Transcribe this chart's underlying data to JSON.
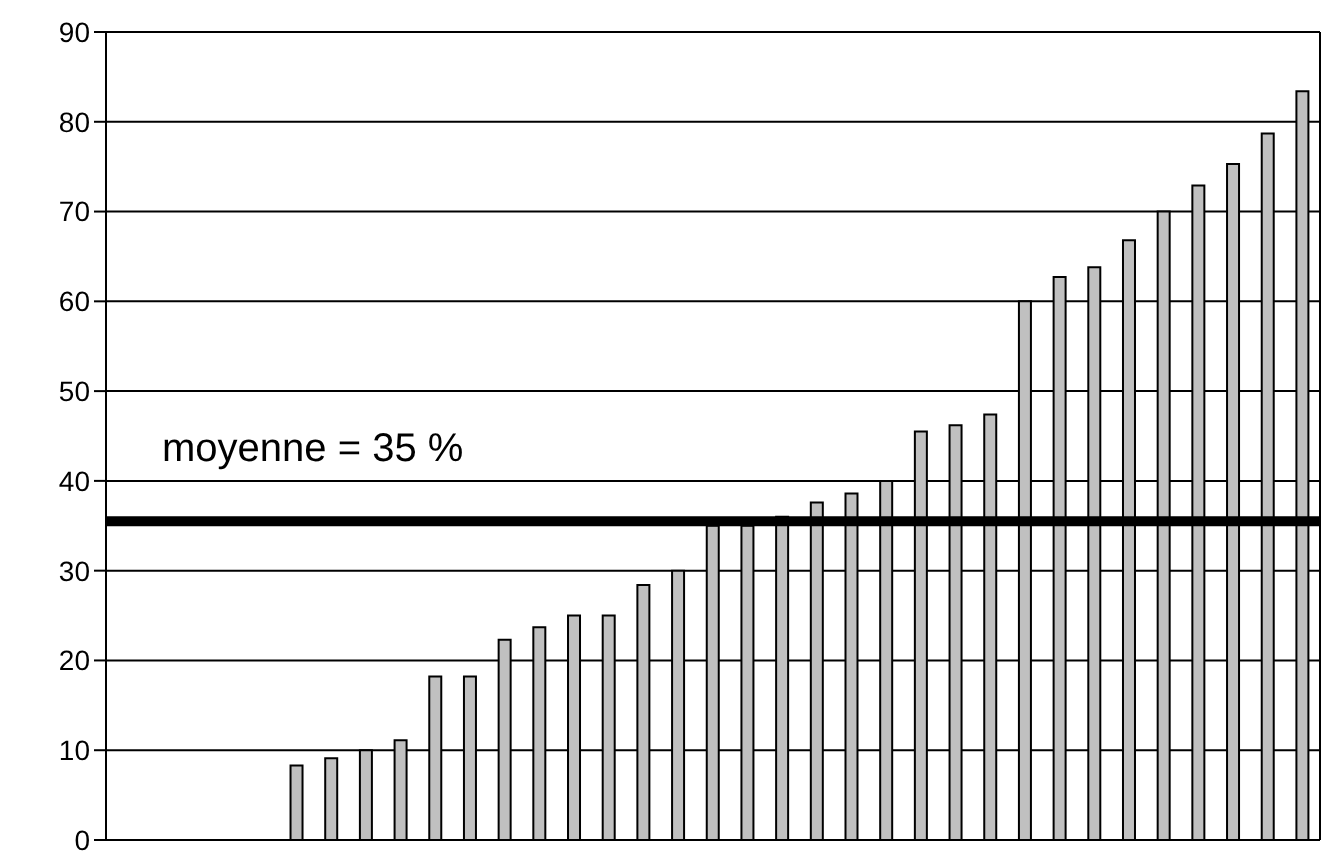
{
  "chart_data": {
    "type": "bar",
    "categories": [
      null,
      null,
      null,
      null,
      null,
      null,
      null,
      null,
      null,
      null,
      null,
      null,
      null,
      null,
      null,
      null,
      null,
      null,
      null,
      null,
      null,
      null,
      null,
      null,
      null,
      null,
      null,
      null,
      null,
      null,
      null,
      null,
      null,
      null,
      null
    ],
    "values": [
      0,
      0,
      0,
      0,
      0,
      8.3,
      9.1,
      10,
      11.1,
      18.2,
      18.2,
      22.3,
      23.7,
      25,
      25,
      28.4,
      30,
      35,
      35,
      36,
      37.6,
      38.6,
      40,
      45.5,
      46.2,
      47.4,
      60,
      62.7,
      63.8,
      66.8,
      70,
      72.9,
      75.3,
      78.7,
      83.4
    ],
    "color": "#c0c0c0",
    "ylim": [
      0,
      90
    ],
    "yticks": [
      0,
      10,
      20,
      30,
      40,
      50,
      60,
      70,
      80,
      90
    ],
    "grid": "y",
    "ref_lines": [
      {
        "axis": "y",
        "value": 35.5,
        "label": "moyenne = 35 %",
        "color": "#000000"
      }
    ]
  }
}
